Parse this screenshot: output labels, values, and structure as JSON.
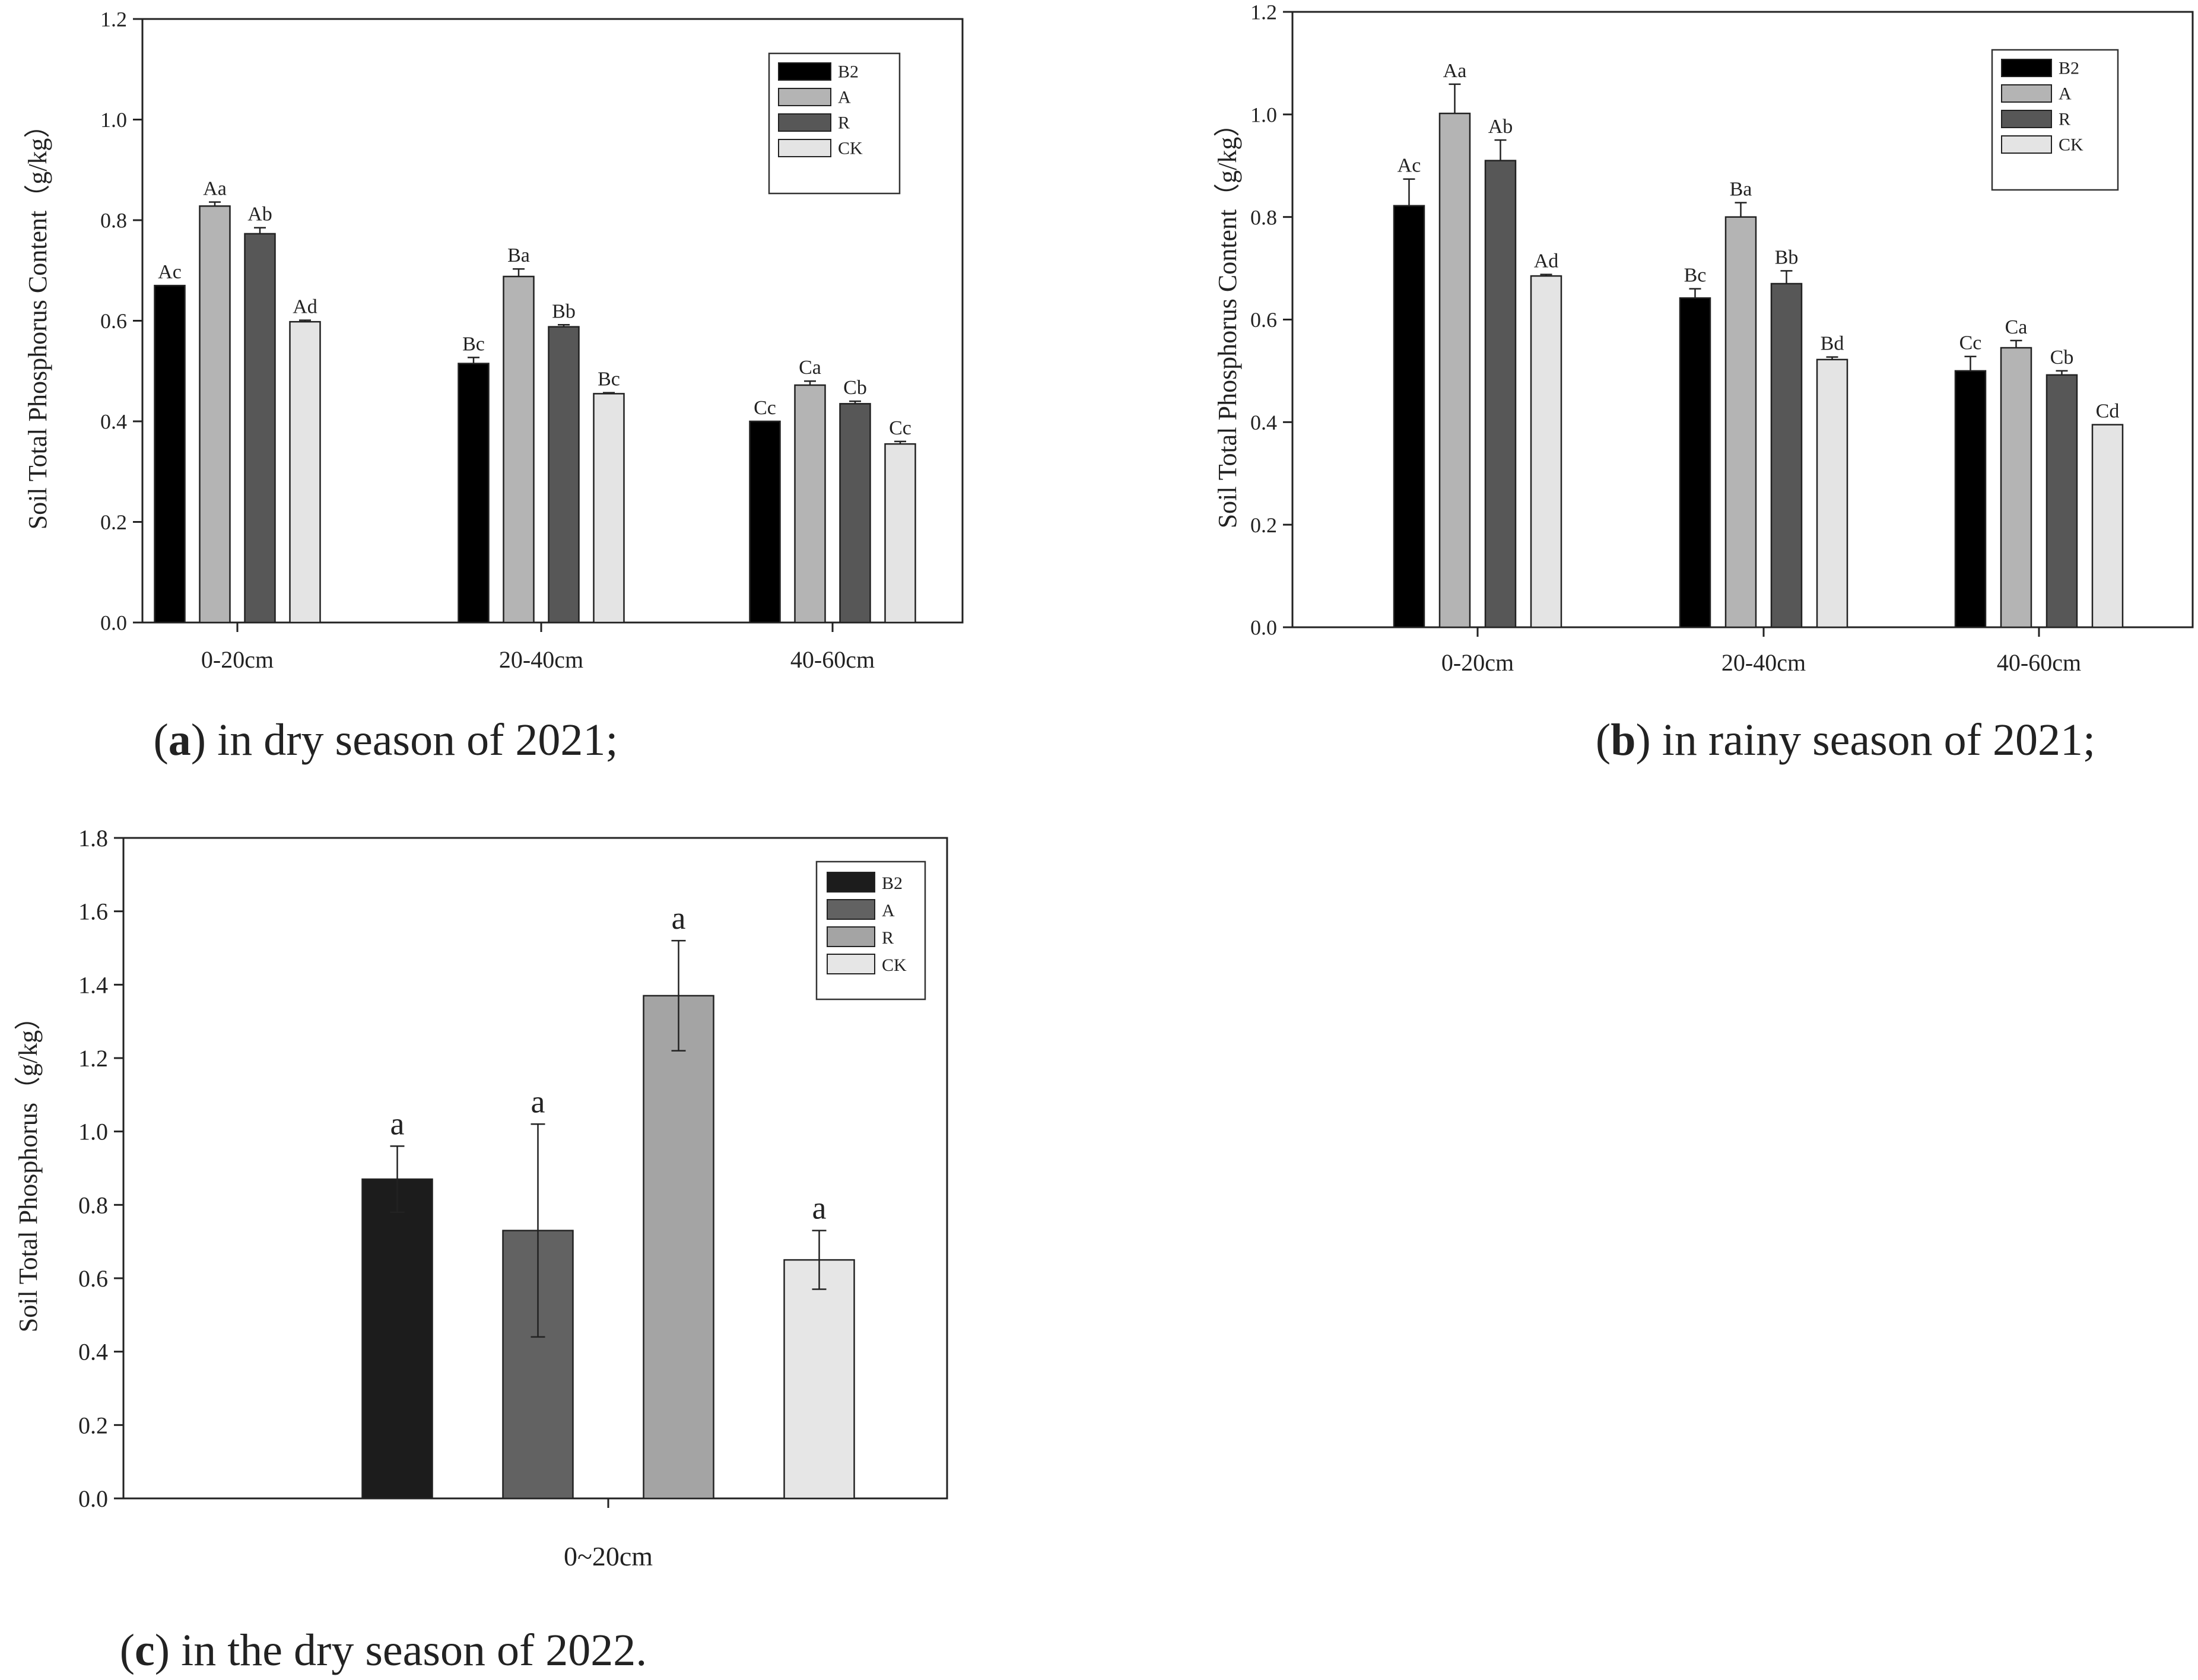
{
  "series_colors": {
    "B2": "#000000",
    "A": "#b4b4b4",
    "R": "#575757",
    "CK": "#e4e4e4"
  },
  "chart_data": [
    {
      "id": "a",
      "type": "bar",
      "caption_letter": "a",
      "caption_text": " in dry season of 2021;",
      "title": "",
      "xlabel": "",
      "ylabel": "Soil Total Phosphorus Content（g/kg）",
      "ylim": [
        0,
        1.2
      ],
      "yticks": [
        "0.0",
        "0.2",
        "0.4",
        "0.6",
        "0.8",
        "1.0",
        "1.2"
      ],
      "categories": [
        "0-20cm",
        "20-40cm",
        "40-60cm"
      ],
      "legend": [
        "B2",
        "A",
        "R",
        "CK"
      ],
      "legend_position": "top-right",
      "series": [
        {
          "name": "B2",
          "color": "#000000",
          "values": [
            0.67,
            0.515,
            0.4
          ],
          "errors": [
            0.0,
            0.012,
            0.0
          ],
          "labels": [
            "Ac",
            "Bc",
            "Cc"
          ]
        },
        {
          "name": "A",
          "color": "#b4b4b4",
          "values": [
            0.828,
            0.688,
            0.472
          ],
          "errors": [
            0.008,
            0.015,
            0.008
          ],
          "labels": [
            "Aa",
            "Ba",
            "Ca"
          ]
        },
        {
          "name": "R",
          "color": "#575757",
          "values": [
            0.773,
            0.588,
            0.435
          ],
          "errors": [
            0.012,
            0.004,
            0.005
          ],
          "labels": [
            "Ab",
            "Bb",
            "Cb"
          ]
        },
        {
          "name": "CK",
          "color": "#e4e4e4",
          "values": [
            0.598,
            0.455,
            0.355
          ],
          "errors": [
            0.003,
            0.002,
            0.005
          ],
          "labels": [
            "Ad",
            "Bc",
            "Cc"
          ]
        }
      ]
    },
    {
      "id": "b",
      "type": "bar",
      "caption_letter": "b",
      "caption_text": " in rainy season of 2021;",
      "title": "",
      "xlabel": "",
      "ylabel": "Soil Total Phosphorus Content（g/kg）",
      "ylim": [
        0,
        1.2
      ],
      "yticks": [
        "0.0",
        "0.2",
        "0.4",
        "0.6",
        "0.8",
        "1.0",
        "1.2"
      ],
      "categories": [
        "0-20cm",
        "20-40cm",
        "40-60cm"
      ],
      "legend": [
        "B2",
        "A",
        "R",
        "CK"
      ],
      "legend_position": "top-right",
      "series": [
        {
          "name": "B2",
          "color": "#000000",
          "values": [
            0.822,
            0.642,
            0.5
          ],
          "errors": [
            0.052,
            0.018,
            0.028
          ],
          "labels": [
            "Ac",
            "Bc",
            "Cc"
          ]
        },
        {
          "name": "A",
          "color": "#b4b4b4",
          "values": [
            1.002,
            0.8,
            0.545
          ],
          "errors": [
            0.057,
            0.028,
            0.014
          ],
          "labels": [
            "Aa",
            "Ba",
            "Ca"
          ]
        },
        {
          "name": "R",
          "color": "#575757",
          "values": [
            0.91,
            0.67,
            0.492
          ],
          "errors": [
            0.04,
            0.025,
            0.008
          ],
          "labels": [
            "Ab",
            "Bb",
            "Cb"
          ]
        },
        {
          "name": "CK",
          "color": "#e4e4e4",
          "values": [
            0.685,
            0.522,
            0.395
          ],
          "errors": [
            0.003,
            0.005,
            0.0
          ],
          "labels": [
            "Ad",
            "Bd",
            "Cd"
          ]
        }
      ]
    },
    {
      "id": "c",
      "type": "bar",
      "caption_letter": "c",
      "caption_text": " in the dry season of 2022.",
      "title": "",
      "xlabel": "",
      "ylabel": "Soil Total Phosphorus（g/kg）",
      "ylim": [
        0,
        1.8
      ],
      "yticks": [
        "0.0",
        "0.2",
        "0.4",
        "0.6",
        "0.8",
        "1.0",
        "1.2",
        "1.4",
        "1.6",
        "1.8"
      ],
      "categories": [
        "0~20cm"
      ],
      "legend": [
        "B2",
        "A",
        "R",
        "CK"
      ],
      "legend_position": "top-right",
      "series": [
        {
          "name": "B2",
          "color": "#1c1c1c",
          "values": [
            0.87
          ],
          "errors": [
            0.09
          ],
          "labels": [
            "a"
          ]
        },
        {
          "name": "A",
          "color": "#626262",
          "values": [
            0.73
          ],
          "errors": [
            0.29
          ],
          "labels": [
            "a"
          ]
        },
        {
          "name": "R",
          "color": "#a4a4a4",
          "values": [
            1.37
          ],
          "errors": [
            0.15
          ],
          "labels": [
            "a"
          ]
        },
        {
          "name": "CK",
          "color": "#e6e6e6",
          "values": [
            0.65
          ],
          "errors": [
            0.08
          ],
          "labels": [
            "a"
          ]
        }
      ]
    }
  ]
}
